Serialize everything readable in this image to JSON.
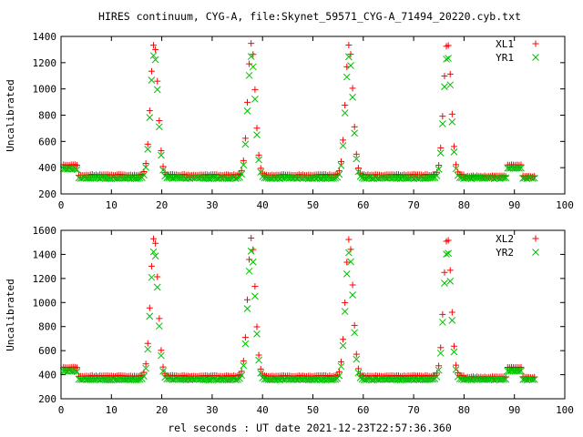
{
  "title": "HIRES continuum, CYG-A, file:Skynet_59571_CYG-A_71494_20220.cyb.txt",
  "xlabel": "rel seconds : UT date 2021-12-23T22:57:36.360",
  "colors": {
    "red": "#ff0000",
    "green": "#00c000"
  },
  "chart_data": [
    {
      "type": "scatter",
      "ylabel": "Uncalibrated",
      "xlim": [
        0,
        100
      ],
      "ylim": [
        200,
        1400
      ],
      "xticks": [
        "0",
        "10",
        "20",
        "30",
        "40",
        "50",
        "60",
        "70",
        "80",
        "90",
        "100"
      ],
      "yticks": [
        "200",
        "400",
        "600",
        "800",
        "1000",
        "1200",
        "1400"
      ],
      "legend_position": "top-right",
      "marker_by_series": [
        "plus",
        "cross"
      ],
      "baseline": {
        "series1": 345,
        "series2": 320,
        "start_level": [
          420,
          390
        ],
        "end_level": [
          335,
          320
        ]
      },
      "peaks": [
        {
          "x": 18.5,
          "max": [
            1350,
            1270
          ]
        },
        {
          "x": 37.8,
          "max": [
            1350,
            1250
          ]
        },
        {
          "x": 57.2,
          "max": [
            1340,
            1250
          ]
        },
        {
          "x": 76.7,
          "max": [
            1360,
            1260
          ]
        }
      ],
      "bump": {
        "x": [
          89,
          91
        ],
        "level": [
          420,
          395
        ]
      },
      "series": [
        {
          "name": "XL1"
        },
        {
          "name": "YR1"
        }
      ]
    },
    {
      "type": "scatter",
      "ylabel": "Uncalibrated",
      "xlim": [
        0,
        100
      ],
      "ylim": [
        200,
        1600
      ],
      "xticks": [
        "0",
        "10",
        "20",
        "30",
        "40",
        "50",
        "60",
        "70",
        "80",
        "90",
        "100"
      ],
      "yticks": [
        "200",
        "400",
        "600",
        "800",
        "1000",
        "1200",
        "1400",
        "1600"
      ],
      "legend_position": "top-right",
      "marker_by_series": [
        "plus",
        "cross"
      ],
      "baseline": {
        "series1": 390,
        "series2": 360,
        "start_level": [
          460,
          430
        ],
        "end_level": [
          380,
          360
        ]
      },
      "peaks": [
        {
          "x": 18.5,
          "max": [
            1550,
            1440
          ]
        },
        {
          "x": 37.8,
          "max": [
            1540,
            1430
          ]
        },
        {
          "x": 57.2,
          "max": [
            1530,
            1420
          ]
        },
        {
          "x": 76.7,
          "max": [
            1550,
            1440
          ]
        }
      ],
      "bump": {
        "x": [
          89,
          91
        ],
        "level": [
          460,
          430
        ]
      },
      "series": [
        {
          "name": "XL2"
        },
        {
          "name": "YR2"
        }
      ]
    }
  ]
}
